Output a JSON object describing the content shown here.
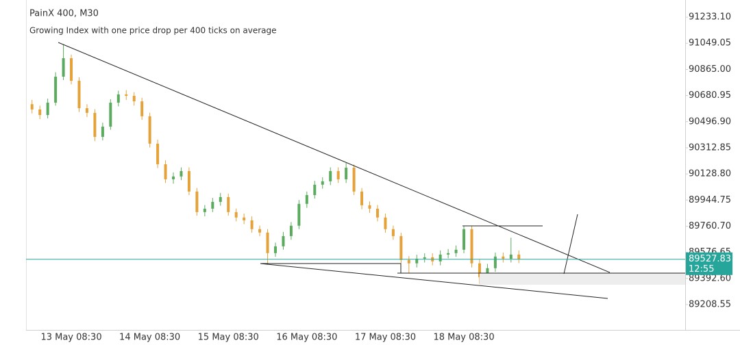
{
  "chart_data": {
    "type": "candlestick",
    "title": "PainX 400, M30",
    "subtitle": "Growing Index with one price drop per 400 ticks on average",
    "categories": [
      null,
      null,
      null,
      null,
      null,
      "13 May 08:30",
      null,
      null,
      null,
      null,
      null,
      null,
      null,
      null,
      null,
      "14 May 08:30",
      null,
      null,
      null,
      null,
      null,
      null,
      null,
      null,
      null,
      "15 May 08:30",
      null,
      null,
      null,
      null,
      null,
      null,
      null,
      null,
      null,
      "16 May 08:30",
      null,
      null,
      null,
      null,
      null,
      null,
      null,
      null,
      null,
      "17 May 08:30",
      null,
      null,
      null,
      null,
      null,
      null,
      null,
      null,
      null,
      "18 May 08:30",
      null,
      null,
      null,
      null,
      null,
      null,
      null
    ],
    "open": [
      90620,
      90583,
      90544,
      90631,
      90814,
      90944,
      90785,
      90592,
      90559,
      90390,
      90462,
      90631,
      90689,
      90679,
      90640,
      90535,
      90342,
      90197,
      90091,
      90111,
      90149,
      90005,
      89860,
      89884,
      89932,
      89966,
      89860,
      89822,
      89802,
      89740,
      89716,
      89571,
      89619,
      89691,
      89764,
      89918,
      89980,
      90053,
      90077,
      90149,
      90091,
      90173,
      90005,
      89908,
      89884,
      89822,
      89740,
      89691,
      89523,
      89499,
      89532,
      89542,
      89513,
      89561,
      89571,
      89595,
      89740,
      89499,
      89402,
      89465,
      89547,
      89532,
      89561
    ],
    "high": [
      90650,
      90610,
      90660,
      90845,
      91040,
      90970,
      90810,
      90620,
      90585,
      90490,
      90655,
      90715,
      90720,
      90705,
      90665,
      90560,
      90370,
      90225,
      90140,
      90175,
      90175,
      90030,
      89910,
      89960,
      89995,
      89990,
      89885,
      89850,
      89830,
      89765,
      89740,
      89645,
      89720,
      89790,
      89945,
      90005,
      90080,
      90105,
      90175,
      90175,
      90207,
      90195,
      90030,
      89935,
      89910,
      89850,
      89765,
      89715,
      89550,
      89560,
      89570,
      89570,
      89590,
      89600,
      89625,
      89764,
      89765,
      89525,
      89495,
      89575,
      89575,
      89680,
      89590
    ],
    "low": [
      90555,
      90515,
      90520,
      90610,
      90790,
      90760,
      90565,
      90530,
      90360,
      90365,
      90440,
      90605,
      90650,
      90610,
      90510,
      90315,
      90170,
      90065,
      90060,
      90085,
      89980,
      89835,
      89830,
      89860,
      89905,
      89835,
      89795,
      89775,
      89715,
      89690,
      89490,
      89545,
      89595,
      89665,
      89740,
      89890,
      89955,
      90025,
      90050,
      90065,
      90065,
      89980,
      89880,
      89855,
      89795,
      89715,
      89665,
      89495,
      89430,
      89470,
      89505,
      89485,
      89485,
      89535,
      89545,
      89570,
      89470,
      89354,
      89375,
      89440,
      89505,
      89505,
      89500
    ],
    "close": [
      90583,
      90544,
      90631,
      90814,
      90944,
      90785,
      90592,
      90559,
      90390,
      90462,
      90631,
      90689,
      90679,
      90640,
      90535,
      90342,
      90197,
      90091,
      90111,
      90149,
      90005,
      89860,
      89884,
      89932,
      89966,
      89860,
      89822,
      89802,
      89740,
      89716,
      89571,
      89619,
      89691,
      89764,
      89918,
      89980,
      90053,
      90077,
      90149,
      90091,
      90173,
      90005,
      89908,
      89884,
      89822,
      89740,
      89691,
      89523,
      89499,
      89532,
      89542,
      89513,
      89561,
      89571,
      89595,
      89740,
      89499,
      89402,
      89465,
      89547,
      89532,
      89561,
      89527.83
    ],
    "up_color": "#5bab5e",
    "down_color": "#e5a23a",
    "ylim": [
      89030,
      91354
    ],
    "yticks": [
      {
        "value": 91233.1,
        "label": "91233.10"
      },
      {
        "value": 91049.05,
        "label": "91049.05"
      },
      {
        "value": 90865,
        "label": "90865.00"
      },
      {
        "value": 90680.95,
        "label": "90680.95"
      },
      {
        "value": 90496.9,
        "label": "90496.90"
      },
      {
        "value": 90312.85,
        "label": "90312.85"
      },
      {
        "value": 90128.8,
        "label": "90128.80"
      },
      {
        "value": 89944.75,
        "label": "89944.75"
      },
      {
        "value": 89760.7,
        "label": "89760.70"
      },
      {
        "value": 89576.65,
        "label": "89576.65"
      },
      {
        "value": 89392.6,
        "label": "89392.60"
      },
      {
        "value": 89208.55,
        "label": "89208.55"
      }
    ],
    "current_price": 89527.83,
    "countdown": "12:55",
    "price_line_color": "#26a69a"
  }
}
